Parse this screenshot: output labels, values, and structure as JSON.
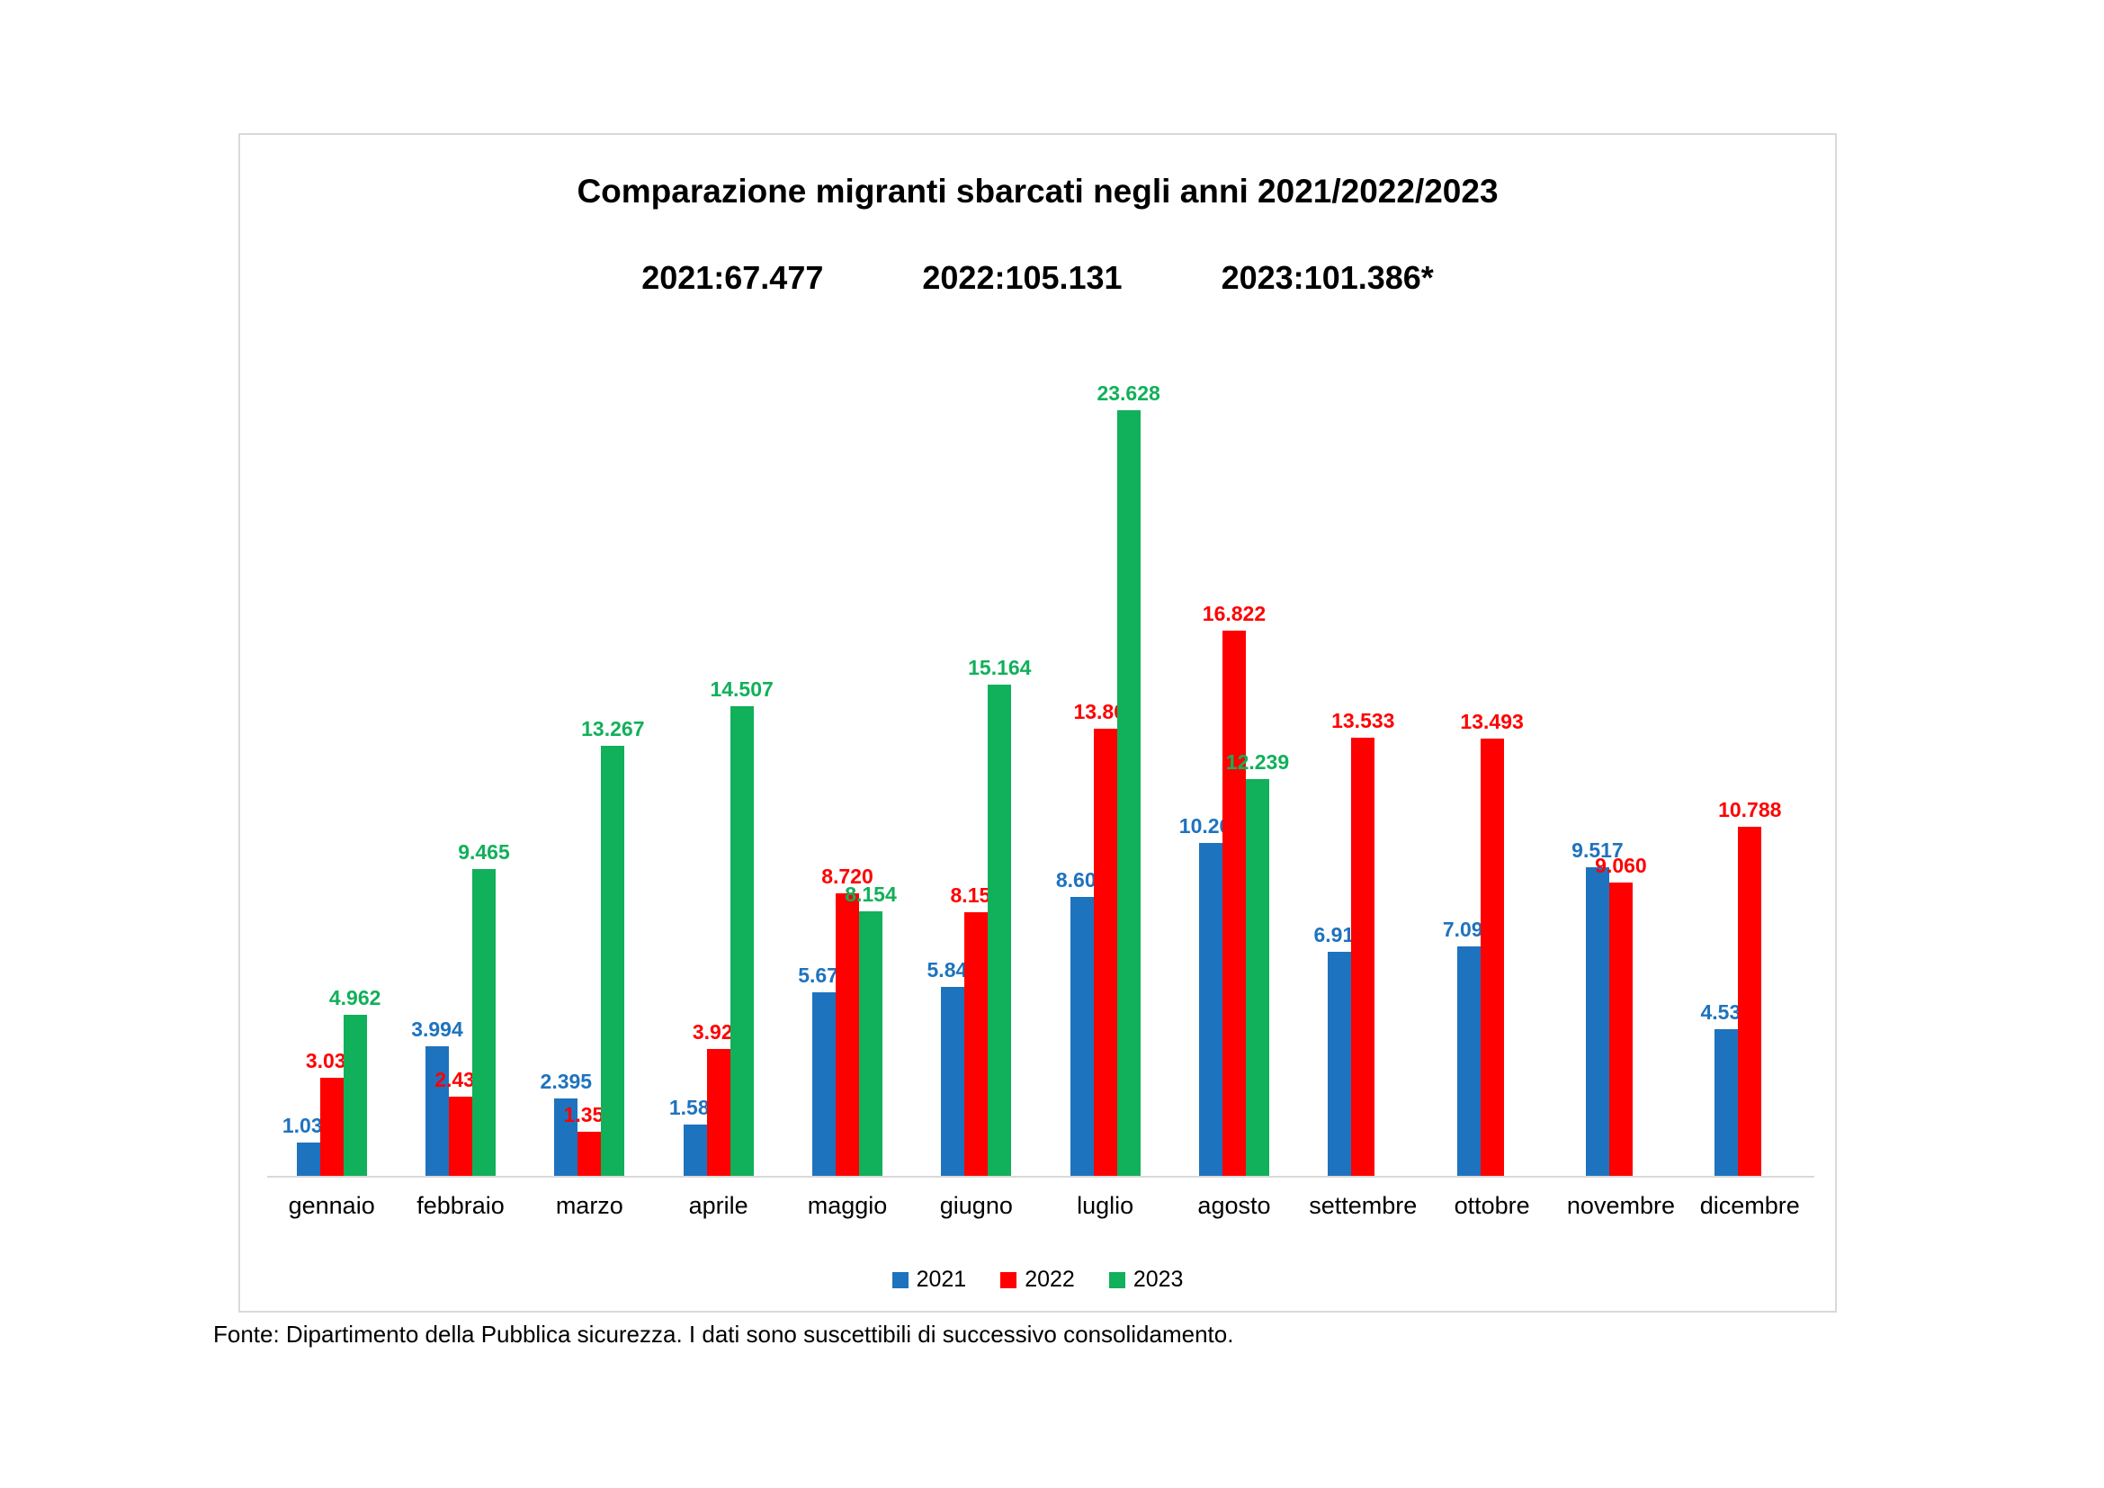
{
  "title": "Comparazione migranti sbarcati negli anni 2021/2022/2023",
  "totals": [
    {
      "label": "2021:67.477"
    },
    {
      "label": "2022:105.131"
    },
    {
      "label": "2023:101.386*"
    }
  ],
  "legend": [
    {
      "name": "2021",
      "color": "#1E73BE"
    },
    {
      "name": "2022",
      "color": "#FF0000"
    },
    {
      "name": "2023",
      "color": "#11B05A"
    }
  ],
  "footer": "Fonte: Dipartimento della Pubblica sicurezza. I dati sono suscettibili di successivo consolidamento.",
  "colors": {
    "year2021": "#1E73BE",
    "year2022": "#FF0000",
    "year2023": "#11B05A",
    "axis": "#d9d9d9"
  },
  "chart_data": {
    "type": "bar",
    "title": "Comparazione migranti sbarcati negli anni 2021/2022/2023",
    "categories": [
      "gennaio",
      "febbraio",
      "marzo",
      "aprile",
      "maggio",
      "giugno",
      "luglio",
      "agosto",
      "settembre",
      "ottobre",
      "novembre",
      "dicembre"
    ],
    "series": [
      {
        "name": "2021",
        "color": "#1E73BE",
        "values": [
          1039,
          3994,
          2395,
          1585,
          5679,
          5840,
          8609,
          10269,
          6919,
          7097,
          9517,
          4534
        ],
        "labels": [
          "1.039",
          "3.994",
          "2.395",
          "1.585",
          "5.679",
          "5.840",
          "8.609",
          "10.269",
          "6.919",
          "7.097",
          "9.517",
          "4.534"
        ]
      },
      {
        "name": "2022",
        "color": "#FF0000",
        "values": [
          3035,
          2439,
          1358,
          3929,
          8720,
          8152,
          13802,
          16822,
          13533,
          13493,
          9060,
          10788
        ],
        "labels": [
          "3.035",
          "2.439",
          "1.358",
          "3.929",
          "8.720",
          "8.152",
          "13.802",
          "16.822",
          "13.533",
          "13.493",
          "9.060",
          "10.788"
        ]
      },
      {
        "name": "2023",
        "color": "#11B05A",
        "values": [
          4962,
          9465,
          13267,
          14507,
          8154,
          15164,
          23628,
          12239,
          null,
          null,
          null,
          null
        ],
        "labels": [
          "4.962",
          "9.465",
          "13.267",
          "14.507",
          "8.154",
          "15.164",
          "23.628",
          "12.239",
          null,
          null,
          null,
          null
        ]
      }
    ],
    "xlabel": "",
    "ylabel": "",
    "ylim": [
      0,
      25000
    ],
    "grid": false,
    "legend_position": "bottom",
    "annotations": [
      "2021:67.477",
      "2022:105.131",
      "2023:101.386*"
    ]
  }
}
